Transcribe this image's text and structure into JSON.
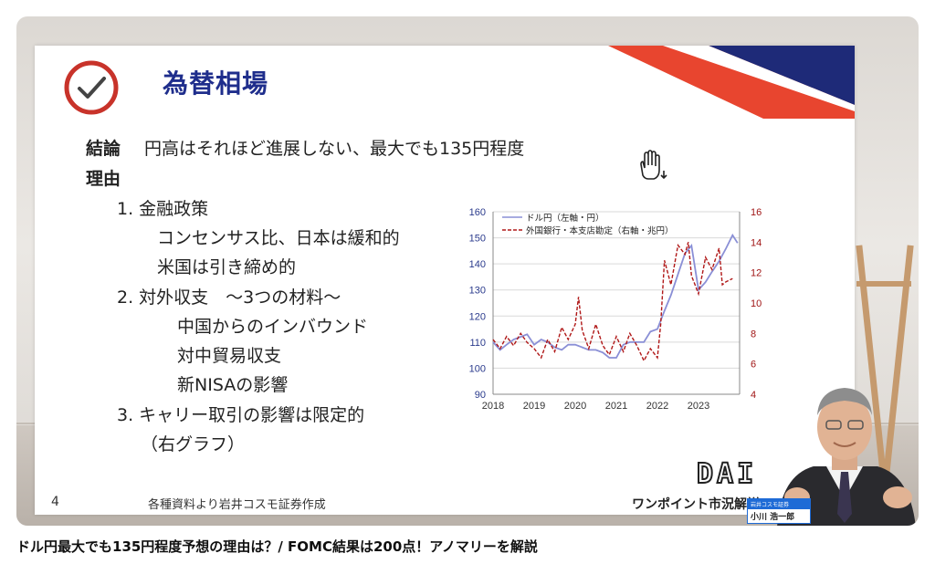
{
  "video": {
    "title": "ドル円最大でも135円程度予想の理由は？/ FOMC結果は200点！アノマリーを解説"
  },
  "slide": {
    "title": "為替相場",
    "conclusion_label": "結論",
    "conclusion_text": "円高はそれほど進展しない、最大でも135円程度",
    "reason_label": "理由",
    "items": [
      {
        "text": "1. 金融政策"
      },
      {
        "text": "コンセンサス比、日本は緩和的"
      },
      {
        "text": "米国は引き締め的"
      },
      {
        "text": "2. 対外収支　～3つの材料～"
      },
      {
        "text": "中国からのインバウンド"
      },
      {
        "text": "対中貿易収支"
      },
      {
        "text": "新NISAの影響"
      },
      {
        "text": "3. キャリー取引の影響は限定的"
      },
      {
        "text": "（右グラフ）"
      }
    ],
    "page_number": "4",
    "source": "各種資料より岩井コスモ証券作成",
    "logo": "DAI",
    "segment": "ワンポイント市況解説"
  },
  "presenter": {
    "company": "岩井コスモ証券",
    "name": "小川 浩一郎"
  },
  "colors": {
    "title": "#1f2e8c",
    "banner_red": "#e8452f",
    "banner_navy": "#1e2a78",
    "usd_line": "#8a8fd6",
    "dept_line": "#b01818"
  },
  "chart_data": {
    "type": "line",
    "x_ticks": [
      "2018",
      "2019",
      "2020",
      "2021",
      "2022",
      "2023"
    ],
    "y_left_ticks": [
      "160",
      "150",
      "140",
      "130",
      "120",
      "110",
      "100",
      "90"
    ],
    "y_right_ticks": [
      "16",
      "14",
      "12",
      "10",
      "8",
      "6",
      "4"
    ],
    "y_left_range": [
      90,
      160
    ],
    "y_right_range": [
      4,
      16
    ],
    "x_range": [
      2018,
      2024
    ],
    "gridlines": "horizontal",
    "legend_position": "top-left",
    "series": [
      {
        "name": "ドル円（左軸・円）",
        "axis": "left",
        "style": "solid",
        "points": [
          [
            2018.0,
            110
          ],
          [
            2018.17,
            107
          ],
          [
            2018.33,
            109
          ],
          [
            2018.5,
            111
          ],
          [
            2018.67,
            112
          ],
          [
            2018.83,
            113
          ],
          [
            2019.0,
            109
          ],
          [
            2019.17,
            111
          ],
          [
            2019.33,
            110
          ],
          [
            2019.5,
            108
          ],
          [
            2019.67,
            107
          ],
          [
            2019.83,
            109
          ],
          [
            2020.0,
            109
          ],
          [
            2020.17,
            108
          ],
          [
            2020.33,
            107
          ],
          [
            2020.5,
            107
          ],
          [
            2020.67,
            106
          ],
          [
            2020.83,
            104
          ],
          [
            2021.0,
            104
          ],
          [
            2021.17,
            109
          ],
          [
            2021.33,
            110
          ],
          [
            2021.5,
            110
          ],
          [
            2021.67,
            110
          ],
          [
            2021.83,
            114
          ],
          [
            2022.0,
            115
          ],
          [
            2022.17,
            122
          ],
          [
            2022.33,
            128
          ],
          [
            2022.5,
            136
          ],
          [
            2022.67,
            144
          ],
          [
            2022.83,
            147
          ],
          [
            2023.0,
            130
          ],
          [
            2023.17,
            133
          ],
          [
            2023.33,
            137
          ],
          [
            2023.5,
            141
          ],
          [
            2023.67,
            146
          ],
          [
            2023.83,
            151
          ],
          [
            2023.95,
            148
          ]
        ]
      },
      {
        "name": "外国銀行・本支店勘定（右軸・兆円）",
        "axis": "right",
        "style": "dashed",
        "points": [
          [
            2018.0,
            7.6
          ],
          [
            2018.17,
            7.0
          ],
          [
            2018.33,
            7.8
          ],
          [
            2018.5,
            7.2
          ],
          [
            2018.67,
            8.0
          ],
          [
            2018.83,
            7.4
          ],
          [
            2019.0,
            7.0
          ],
          [
            2019.17,
            6.4
          ],
          [
            2019.33,
            7.6
          ],
          [
            2019.5,
            6.8
          ],
          [
            2019.67,
            8.4
          ],
          [
            2019.83,
            7.6
          ],
          [
            2020.0,
            8.6
          ],
          [
            2020.08,
            10.4
          ],
          [
            2020.17,
            8.2
          ],
          [
            2020.33,
            7.0
          ],
          [
            2020.5,
            8.6
          ],
          [
            2020.67,
            7.2
          ],
          [
            2020.83,
            6.6
          ],
          [
            2021.0,
            7.8
          ],
          [
            2021.17,
            6.8
          ],
          [
            2021.33,
            8.0
          ],
          [
            2021.5,
            7.2
          ],
          [
            2021.67,
            6.2
          ],
          [
            2021.83,
            7.0
          ],
          [
            2022.0,
            6.4
          ],
          [
            2022.08,
            8.6
          ],
          [
            2022.17,
            12.8
          ],
          [
            2022.33,
            11.2
          ],
          [
            2022.5,
            13.8
          ],
          [
            2022.67,
            13.2
          ],
          [
            2022.75,
            14.0
          ],
          [
            2022.83,
            11.8
          ],
          [
            2023.0,
            10.6
          ],
          [
            2023.17,
            13.0
          ],
          [
            2023.33,
            12.2
          ],
          [
            2023.5,
            13.6
          ],
          [
            2023.58,
            11.2
          ],
          [
            2023.67,
            11.4
          ],
          [
            2023.83,
            11.6
          ]
        ]
      }
    ]
  }
}
